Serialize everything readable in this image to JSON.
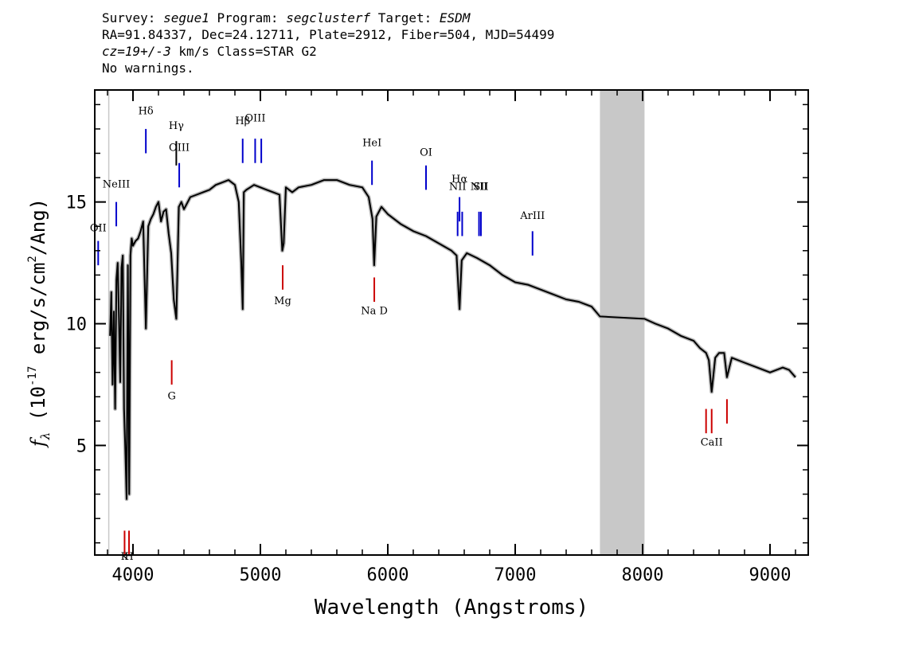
{
  "header": {
    "line1": {
      "survey_label": "Survey: ",
      "survey": "segue1",
      "program_label": " Program: ",
      "program": "segclusterf",
      "target_label": " Target: ",
      "target": "ESDM"
    },
    "line2": "RA=91.84337, Dec=24.12711, Plate=2912, Fiber=504, MJD=54499",
    "line3": {
      "cz": "cz=19+/-3",
      "rest": " km/s Class=STAR G2"
    },
    "line4": "No warnings."
  },
  "chart_data": {
    "type": "line",
    "xlabel": "Wavelength (Angstroms)",
    "ylabel": "f_λ (10^-17 erg/s/cm^2/Ang)",
    "ylabel_parts": {
      "pre": "(10",
      "sup1": "-17",
      "mid": " erg/s/cm",
      "sup2": "2",
      "post": "/Ang)"
    },
    "xlim": [
      3700,
      9300
    ],
    "ylim": [
      0.5,
      19.6
    ],
    "xticks": [
      4000,
      5000,
      6000,
      7000,
      8000,
      9000
    ],
    "yticks": [
      5,
      10,
      15
    ],
    "masked_region": [
      7665,
      8015
    ],
    "series": [
      {
        "color": "#000000",
        "x": [
          3820,
          3830,
          3840,
          3850,
          3860,
          3870,
          3880,
          3890,
          3900,
          3910,
          3920,
          3930,
          3940,
          3950,
          3960,
          3970,
          3980,
          3990,
          4000,
          4020,
          4040,
          4060,
          4080,
          4101,
          4120,
          4140,
          4160,
          4180,
          4200,
          4220,
          4240,
          4260,
          4280,
          4300,
          4320,
          4340,
          4360,
          4380,
          4400,
          4450,
          4500,
          4550,
          4600,
          4650,
          4700,
          4750,
          4800,
          4830,
          4850,
          4861,
          4870,
          4890,
          4920,
          4950,
          5000,
          5050,
          5100,
          5150,
          5172,
          5183,
          5200,
          5250,
          5300,
          5400,
          5500,
          5600,
          5700,
          5800,
          5850,
          5880,
          5893,
          5910,
          5950,
          6000,
          6100,
          6200,
          6300,
          6400,
          6500,
          6540,
          6563,
          6580,
          6620,
          6700,
          6800,
          6900,
          7000,
          7100,
          7200,
          7300,
          7400,
          7500,
          7600,
          7665,
          8015,
          8100,
          8200,
          8300,
          8400,
          8450,
          8498,
          8520,
          8542,
          8570,
          8600,
          8640,
          8662,
          8700,
          8800,
          8900,
          9000,
          9100,
          9150,
          9200
        ],
        "y": [
          9.5,
          11.3,
          7.5,
          10.5,
          6.5,
          11.8,
          12.5,
          10.2,
          7.6,
          12.3,
          12.8,
          6.5,
          4.8,
          2.8,
          12.4,
          3.0,
          12.8,
          13.5,
          13.2,
          13.4,
          13.5,
          13.8,
          14.2,
          9.8,
          14.0,
          14.3,
          14.5,
          14.8,
          15.0,
          14.2,
          14.6,
          14.7,
          13.7,
          12.9,
          11.0,
          10.2,
          14.8,
          15.0,
          14.7,
          15.2,
          15.3,
          15.4,
          15.5,
          15.7,
          15.8,
          15.9,
          15.7,
          15.0,
          12.5,
          10.6,
          15.4,
          15.5,
          15.6,
          15.7,
          15.6,
          15.5,
          15.4,
          15.3,
          13.0,
          13.3,
          15.6,
          15.4,
          15.6,
          15.7,
          15.9,
          15.9,
          15.7,
          15.6,
          15.2,
          14.3,
          12.4,
          14.4,
          14.8,
          14.5,
          14.1,
          13.8,
          13.6,
          13.3,
          13.0,
          12.8,
          10.6,
          12.6,
          12.9,
          12.7,
          12.4,
          12.0,
          11.7,
          11.6,
          11.4,
          11.2,
          11.0,
          10.9,
          10.7,
          10.3,
          10.2,
          10.0,
          9.8,
          9.5,
          9.3,
          9.0,
          8.8,
          8.5,
          7.2,
          8.6,
          8.8,
          8.8,
          7.8,
          8.6,
          8.4,
          8.2,
          8.0,
          8.2,
          8.1,
          7.8
        ]
      }
    ],
    "line_markers": [
      {
        "label": "OII",
        "x": 3727,
        "y_top": 13.4,
        "y_bottom": 12.4,
        "label_y": 13.8,
        "color": "#0000cc"
      },
      {
        "label": "NeIII",
        "x": 3869,
        "y_top": 15.0,
        "y_bottom": 14.0,
        "label_y": 15.6,
        "color": "#0000cc"
      },
      {
        "label": "Hδ",
        "x": 4101,
        "y_top": 18.0,
        "y_bottom": 17.0,
        "label_y": 18.6,
        "color": "#0000cc"
      },
      {
        "label": "Hγ",
        "x": 4340,
        "y_top": 17.5,
        "y_bottom": 16.5,
        "label_y": 18.0,
        "color": "#000000"
      },
      {
        "label": "OIII",
        "x": 4363,
        "y_top": 16.6,
        "y_bottom": 15.6,
        "label_y": 17.1,
        "color": "#0000cc"
      },
      {
        "label": "Hβ",
        "x": 4861,
        "y_top": 17.6,
        "y_bottom": 16.6,
        "label_y": 18.2,
        "color": "#0000cc"
      },
      {
        "label": "OIII",
        "x": 4959,
        "y_top": 17.6,
        "y_bottom": 16.6,
        "label_y": 18.3,
        "color": "#0000cc"
      },
      {
        "label": "",
        "x": 5007,
        "y_top": 17.6,
        "y_bottom": 16.6,
        "label_y": 18.3,
        "color": "#0000cc"
      },
      {
        "label": "HeI",
        "x": 5876,
        "y_top": 16.7,
        "y_bottom": 15.7,
        "label_y": 17.3,
        "color": "#0000cc"
      },
      {
        "label": "OI",
        "x": 6300,
        "y_top": 16.5,
        "y_bottom": 15.5,
        "label_y": 16.9,
        "color": "#0000cc"
      },
      {
        "label": "NII",
        "x": 6548,
        "y_top": 14.6,
        "y_bottom": 13.6,
        "label_y": 15.5,
        "color": "#0000cc"
      },
      {
        "label": "Hα",
        "x": 6563,
        "y_top": 15.2,
        "y_bottom": 14.2,
        "label_y": 15.8,
        "color": "#0000cc"
      },
      {
        "label": "",
        "x": 6584,
        "y_top": 14.6,
        "y_bottom": 13.6,
        "label_y": 15.5,
        "color": "#0000cc"
      },
      {
        "label": "NII",
        "x": 6716,
        "y_top": 14.6,
        "y_bottom": 13.6,
        "label_y": 15.5,
        "color": "#0000cc"
      },
      {
        "label": "SII",
        "x": 6731,
        "y_top": 14.6,
        "y_bottom": 13.6,
        "label_y": 15.5,
        "color": "#0000cc"
      },
      {
        "label": "ArIII",
        "x": 7136,
        "y_top": 13.8,
        "y_bottom": 12.8,
        "label_y": 14.3,
        "color": "#0000cc"
      }
    ],
    "absorption_markers": [
      {
        "label": "K",
        "x": 3934,
        "y_top": 1.5,
        "y_bottom": 0.5,
        "label_y": 0.3,
        "color": "#cc0000"
      },
      {
        "label": "H",
        "x": 3969,
        "y_top": 1.5,
        "y_bottom": 0.5,
        "label_y": 0.3,
        "color": "#cc0000"
      },
      {
        "label": "G",
        "x": 4304,
        "y_top": 8.5,
        "y_bottom": 7.5,
        "label_y": 6.9,
        "color": "#cc0000"
      },
      {
        "label": "Mg",
        "x": 5175,
        "y_top": 12.4,
        "y_bottom": 11.4,
        "label_y": 10.8,
        "color": "#cc0000"
      },
      {
        "label": "Na D",
        "x": 5894,
        "y_top": 11.9,
        "y_bottom": 10.9,
        "label_y": 10.4,
        "color": "#cc0000"
      },
      {
        "label": "",
        "x": 8498,
        "y_top": 6.5,
        "y_bottom": 5.5,
        "label_y": 5.0,
        "color": "#cc0000"
      },
      {
        "label": "CaII",
        "x": 8542,
        "y_top": 6.5,
        "y_bottom": 5.5,
        "label_y": 5.0,
        "color": "#cc0000"
      },
      {
        "label": "",
        "x": 8662,
        "y_top": 6.9,
        "y_bottom": 5.9,
        "label_y": 5.0,
        "color": "#cc0000"
      }
    ]
  }
}
